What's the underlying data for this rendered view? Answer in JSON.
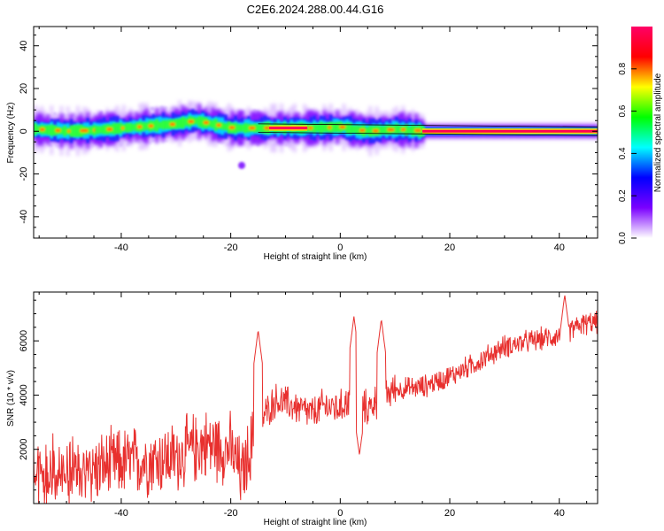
{
  "title": "C2E6.2024.288.00.44.G16",
  "chart_data": [
    {
      "type": "heatmap",
      "xlabel": "Height of straight line (km)",
      "ylabel": "Frequency (Hz)",
      "xlim": [
        -56,
        47
      ],
      "ylim": [
        -50,
        49
      ],
      "xticks": [
        -40,
        -20,
        0,
        20,
        40
      ],
      "yticks": [
        -40,
        -20,
        0,
        20,
        40
      ],
      "grid": false,
      "colorbar": {
        "label": "Normalized spectral amplitude",
        "range": [
          0,
          1
        ],
        "ticks": [
          "0.0",
          "0.2",
          "0.4",
          "0.6",
          "0.8"
        ],
        "colors": [
          "#ffffff",
          "#7b00ff",
          "#0000ff",
          "#00ffff",
          "#00ff00",
          "#ffff00",
          "#ff0000",
          "#ff0066"
        ]
      },
      "ridge": {
        "height_km": [
          -56,
          -50,
          -45,
          -40,
          -35,
          -30,
          -27,
          -25,
          -20,
          -15,
          -10,
          -5,
          0,
          3,
          5,
          10,
          15,
          20,
          30,
          40,
          47
        ],
        "frequency_hz": [
          1,
          0,
          0.5,
          1.5,
          2.5,
          3.5,
          5,
          4,
          1.5,
          1.5,
          1.5,
          1.5,
          2,
          0.5,
          0,
          1,
          0,
          0,
          0,
          0,
          0
        ]
      },
      "outlier": {
        "height_km": -18,
        "frequency_hz": -16
      }
    },
    {
      "type": "line",
      "xlabel": "Height of straight line (km)",
      "ylabel": "SNR (10 * v/v)",
      "xlim": [
        -56,
        47
      ],
      "ylim": [
        0,
        7800
      ],
      "xticks": [
        -40,
        -20,
        0,
        20,
        40
      ],
      "yticks": [
        2000,
        4000,
        6000
      ],
      "grid": false,
      "line_color": "#e8302e",
      "trend": {
        "height_km": [
          -56,
          -50,
          -40,
          -30,
          -25,
          -20,
          -18,
          -15,
          -12,
          -10,
          -5,
          -3,
          0,
          2,
          3,
          5,
          8,
          10,
          15,
          20,
          25,
          30,
          35,
          40,
          44,
          47
        ],
        "snr": [
          1400,
          1000,
          1500,
          1700,
          2200,
          2000,
          1000,
          2900,
          3800,
          3700,
          3300,
          3600,
          3500,
          4000,
          3700,
          3500,
          4000,
          4200,
          4300,
          4700,
          5200,
          5800,
          6000,
          6200,
          6600,
          6700
        ]
      },
      "peaks": [
        {
          "height_km": -15,
          "snr": 6400
        },
        {
          "height_km": 2.5,
          "snr": 6900
        },
        {
          "height_km": 7.5,
          "snr": 6800
        },
        {
          "height_km": 41,
          "snr": 7700
        }
      ]
    }
  ]
}
